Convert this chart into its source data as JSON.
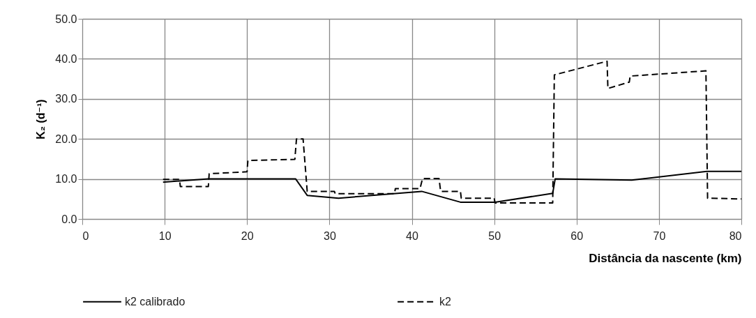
{
  "chart_data": {
    "type": "line",
    "xlabel": "Distância da nascente (km)",
    "ylabel": "K₂ (d⁻¹)",
    "xlim": [
      0,
      80
    ],
    "xticks": [
      0,
      10,
      20,
      30,
      40,
      50,
      60,
      70,
      80
    ],
    "ylim": [
      0,
      50
    ],
    "yticks": [
      {
        "value": 0,
        "label": "0.0"
      },
      {
        "value": 10,
        "label": "10.0"
      },
      {
        "value": 20,
        "label": "20.0"
      },
      {
        "value": 30,
        "label": "30.0"
      },
      {
        "value": 40,
        "label": "40.0"
      },
      {
        "value": 50,
        "label": "50.0"
      }
    ],
    "grid": true,
    "legend": "bottom",
    "marker": "none",
    "series": [
      {
        "name": "k2 calibrado",
        "color": "#000000",
        "line_style": "solid",
        "x": [
          9.8,
          15.3,
          25.9,
          27.3,
          31.1,
          41.2,
          45.9,
          50.1,
          57.1,
          57.4,
          66.7,
          75.8,
          80
        ],
        "values": [
          9.2,
          10.0,
          10.0,
          5.9,
          5.2,
          6.9,
          4.2,
          4.2,
          6.4,
          10.0,
          9.7,
          11.9,
          11.9
        ]
      },
      {
        "name": "k2",
        "color": "#000000",
        "line_style": "dashed",
        "x": [
          9.8,
          11.8,
          11.9,
          15.3,
          15.4,
          20.0,
          20.1,
          25.8,
          26.0,
          26.8,
          27.3,
          30.6,
          30.7,
          37.9,
          38.0,
          41.0,
          41.3,
          43.3,
          43.5,
          45.9,
          46.0,
          50.0,
          50.1,
          57.1,
          57.3,
          63.7,
          63.8,
          66.4,
          66.5,
          75.7,
          75.9,
          80
        ],
        "values": [
          9.9,
          9.9,
          8.1,
          8.1,
          11.3,
          11.8,
          14.6,
          14.9,
          20.0,
          20.0,
          6.9,
          6.9,
          6.3,
          6.3,
          7.6,
          7.6,
          10.1,
          10.1,
          6.9,
          6.9,
          5.2,
          5.2,
          4.0,
          4.0,
          36.0,
          39.4,
          32.6,
          34.2,
          35.7,
          37.0,
          5.2,
          5.0
        ]
      }
    ]
  }
}
